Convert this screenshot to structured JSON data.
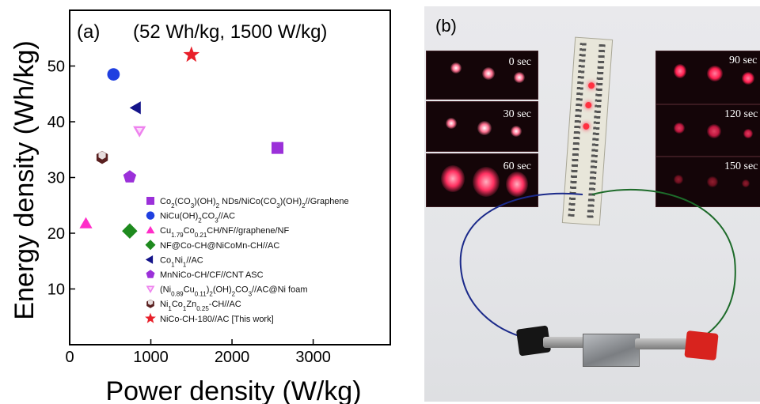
{
  "panel_a": {
    "label": "(a)",
    "highlight_text": "(52 Wh/kg, 1500 W/kg)",
    "highlight_color": "#e8202a"
  },
  "panel_b": {
    "label": "(b)",
    "inset_times_left": [
      "0 sec",
      "30 sec",
      "60 sec"
    ],
    "inset_times_right": [
      "90 sec",
      "120 sec",
      "150 sec"
    ],
    "led_color": "#ff2040"
  },
  "chart_data": {
    "type": "scatter",
    "xlabel": "Power density (W/kg)",
    "ylabel": "Energy density (Wh/kg)",
    "xlim": [
      0,
      3950
    ],
    "ylim": [
      0,
      60
    ],
    "xticks": [
      0,
      1000,
      2000,
      3000
    ],
    "xtick_labels": [
      "0",
      "1000",
      "2000",
      "3000"
    ],
    "yticks": [
      10,
      20,
      30,
      40,
      50
    ],
    "ytick_labels": [
      "10",
      "20",
      "30",
      "40",
      "50"
    ],
    "grid": false,
    "legend_placement": "bottom-right",
    "series": [
      {
        "name": "Co2(CO3)(OH)2 NDs/NiCo(CO3)(OH)2//Graphene",
        "marker": "square",
        "color": "#9b30d9",
        "x": [
          2560
        ],
        "y": [
          35.3
        ]
      },
      {
        "name": "NiCu(OH)2CO3//AC",
        "marker": "circle",
        "color": "#1f3fe0",
        "x": [
          540
        ],
        "y": [
          48.5
        ]
      },
      {
        "name": "Cu1.79Co0.21CH/NF//graphene/NF",
        "marker": "triangle-up",
        "color": "#ff2dc8",
        "x": [
          200
        ],
        "y": [
          21.7
        ]
      },
      {
        "name": "NF@Co-CH@NiCoMn-CH//AC",
        "marker": "diamond",
        "color": "#1e8a1e",
        "x": [
          740
        ],
        "y": [
          20.4
        ]
      },
      {
        "name": "Co1Ni1//AC",
        "marker": "triangle-left",
        "color": "#14148a",
        "x": [
          830
        ],
        "y": [
          42.5
        ]
      },
      {
        "name": "MnNiCo-CH/CF//CNT ASC",
        "marker": "pentagon",
        "color": "#9b30d9",
        "x": [
          740
        ],
        "y": [
          30.1
        ]
      },
      {
        "name": "(Ni0.89Cu0.11)2(OH)2CO3//AC@Ni foam",
        "marker": "triangle-down",
        "color": "#ee82ee",
        "x": [
          860
        ],
        "y": [
          38.4
        ]
      },
      {
        "name": "Ni1Co1Zn0.25-CH//AC",
        "marker": "hexagon",
        "color": "#5a2020",
        "x": [
          400
        ],
        "y": [
          33.6
        ]
      },
      {
        "name": "NiCo-CH-180//AC [This work]",
        "marker": "star",
        "color": "#e8202a",
        "x": [
          1500
        ],
        "y": [
          52
        ]
      }
    ]
  }
}
